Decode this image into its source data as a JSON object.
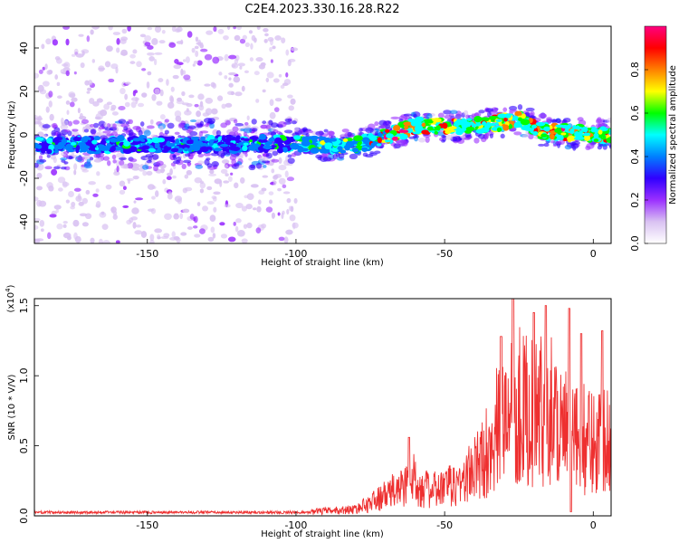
{
  "title": "C2E4.2023.330.16.28.R22",
  "chart_data": [
    {
      "type": "heatmap",
      "xlabel": "Height of straight line (km)",
      "ylabel": "Frequency (Hz)",
      "xlim": [
        -188,
        6
      ],
      "ylim": [
        -50,
        50
      ],
      "xticks": [
        -150,
        -100,
        -50,
        0
      ],
      "yticks": [
        -40,
        -20,
        0,
        20,
        40
      ],
      "colorbar": {
        "label": "Normalized spectral amplitude",
        "range": [
          0,
          1
        ],
        "ticks": [
          "0.0",
          "0.2",
          "0.4",
          "0.6",
          "0.8"
        ],
        "colors": [
          "#ffffff",
          "#d9c2f2",
          "#9b30ff",
          "#3000ff",
          "#0080ff",
          "#00ffff",
          "#00ff00",
          "#ffff00",
          "#ff8000",
          "#ff0000",
          "#ff0080"
        ]
      },
      "ridge": [
        {
          "x": -188,
          "y": -5
        },
        {
          "x": -100,
          "y": -4
        },
        {
          "x": -80,
          "y": -5
        },
        {
          "x": -60,
          "y": 4
        },
        {
          "x": -40,
          "y": 4
        },
        {
          "x": -24,
          "y": 7
        },
        {
          "x": -18,
          "y": 2
        },
        {
          "x": 0,
          "y": 0
        },
        {
          "x": 6,
          "y": 0
        }
      ],
      "noise_region_x": [
        -188,
        -100
      ]
    },
    {
      "type": "line",
      "xlabel": "Height of straight line (km)",
      "ylabel": "SNR (10 * V/V)",
      "yscale_label": "(x10",
      "yscale_exp": "4",
      "xlim": [
        -188,
        6
      ],
      "ylim": [
        0,
        1.55
      ],
      "xticks": [
        -150,
        -100,
        -50,
        0
      ],
      "yticks": [
        "0.0",
        "0.5",
        "1.0",
        "1.5"
      ],
      "color": "#ee3030",
      "envelope": [
        {
          "x": -188,
          "y": 0.03
        },
        {
          "x": -120,
          "y": 0.03
        },
        {
          "x": -100,
          "y": 0.04
        },
        {
          "x": -80,
          "y": 0.08
        },
        {
          "x": -70,
          "y": 0.25
        },
        {
          "x": -60,
          "y": 0.45
        },
        {
          "x": -55,
          "y": 0.3
        },
        {
          "x": -45,
          "y": 0.4
        },
        {
          "x": -38,
          "y": 0.65
        },
        {
          "x": -32,
          "y": 1.1
        },
        {
          "x": -27,
          "y": 1.45
        },
        {
          "x": -20,
          "y": 1.25
        },
        {
          "x": -14,
          "y": 1.35
        },
        {
          "x": -8,
          "y": 0.95
        },
        {
          "x": 0,
          "y": 0.95
        },
        {
          "x": 6,
          "y": 1.1
        }
      ],
      "peaks": [
        {
          "x": -62,
          "y": 0.56
        },
        {
          "x": -31,
          "y": 1.28
        },
        {
          "x": -27,
          "y": 1.55
        },
        {
          "x": -20,
          "y": 1.45
        },
        {
          "x": -16,
          "y": 1.5
        },
        {
          "x": -8,
          "y": 1.48
        },
        {
          "x": -4,
          "y": 1.3
        },
        {
          "x": 3,
          "y": 1.32
        }
      ]
    }
  ]
}
